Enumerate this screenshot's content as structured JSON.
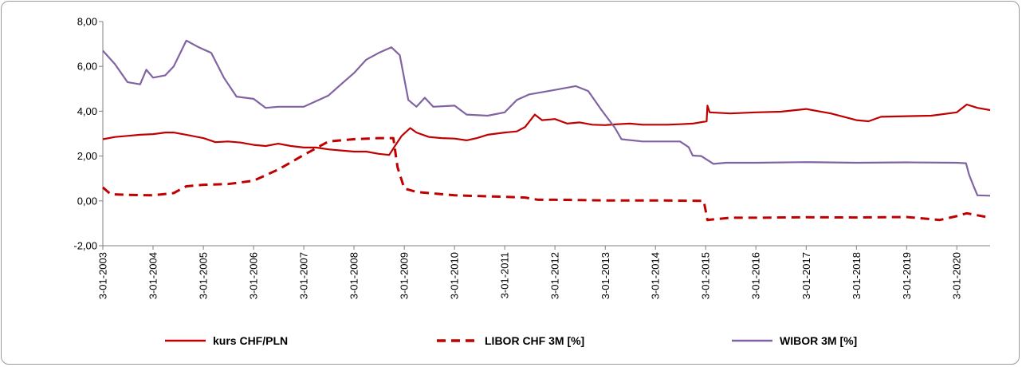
{
  "chart_data": {
    "type": "line",
    "title": "",
    "xlabel": "",
    "ylabel": "",
    "x_start": "2003-01-03",
    "x_end": "2020-09-01",
    "ylim": [
      -2,
      8
    ],
    "y_ticks": [
      "-2,00",
      "0,00",
      "2,00",
      "4,00",
      "6,00",
      "8,00"
    ],
    "x_ticks": [
      "3-01-2003",
      "3-01-2004",
      "3-01-2005",
      "3-01-2006",
      "3-01-2007",
      "3-01-2008",
      "3-01-2009",
      "3-01-2010",
      "3-01-2011",
      "3-01-2012",
      "3-01-2013",
      "3-01-2014",
      "3-01-2015",
      "3-01-2016",
      "3-01-2017",
      "3-01-2018",
      "3-01-2019",
      "3-01-2020"
    ],
    "grid": false,
    "legend_position": "bottom",
    "series": [
      {
        "name": "kurs  CHF/PLN",
        "color": "#c00000",
        "style": "solid",
        "points": [
          [
            "2003-01-03",
            2.75
          ],
          [
            "2003-04-01",
            2.85
          ],
          [
            "2003-07-01",
            2.9
          ],
          [
            "2003-10-01",
            2.95
          ],
          [
            "2004-01-03",
            2.98
          ],
          [
            "2004-04-01",
            3.05
          ],
          [
            "2004-06-01",
            3.05
          ],
          [
            "2004-09-01",
            2.95
          ],
          [
            "2005-01-03",
            2.8
          ],
          [
            "2005-04-01",
            2.62
          ],
          [
            "2005-07-01",
            2.65
          ],
          [
            "2005-10-01",
            2.6
          ],
          [
            "2006-01-03",
            2.5
          ],
          [
            "2006-04-01",
            2.45
          ],
          [
            "2006-07-01",
            2.55
          ],
          [
            "2006-10-01",
            2.45
          ],
          [
            "2007-01-03",
            2.38
          ],
          [
            "2007-04-01",
            2.38
          ],
          [
            "2007-07-01",
            2.3
          ],
          [
            "2007-10-01",
            2.25
          ],
          [
            "2008-01-03",
            2.2
          ],
          [
            "2008-04-01",
            2.2
          ],
          [
            "2008-07-01",
            2.1
          ],
          [
            "2008-09-15",
            2.05
          ],
          [
            "2008-11-01",
            2.5
          ],
          [
            "2008-12-15",
            2.9
          ],
          [
            "2009-02-15",
            3.25
          ],
          [
            "2009-04-01",
            3.05
          ],
          [
            "2009-07-01",
            2.85
          ],
          [
            "2009-10-01",
            2.8
          ],
          [
            "2010-01-03",
            2.78
          ],
          [
            "2010-04-01",
            2.7
          ],
          [
            "2010-06-15",
            2.8
          ],
          [
            "2010-09-01",
            2.95
          ],
          [
            "2011-01-03",
            3.05
          ],
          [
            "2011-04-01",
            3.1
          ],
          [
            "2011-06-01",
            3.3
          ],
          [
            "2011-08-10",
            3.85
          ],
          [
            "2011-10-01",
            3.6
          ],
          [
            "2012-01-03",
            3.65
          ],
          [
            "2012-04-01",
            3.45
          ],
          [
            "2012-07-01",
            3.5
          ],
          [
            "2012-10-01",
            3.4
          ],
          [
            "2013-01-03",
            3.38
          ],
          [
            "2013-04-01",
            3.42
          ],
          [
            "2013-07-01",
            3.45
          ],
          [
            "2013-10-01",
            3.4
          ],
          [
            "2014-01-03",
            3.4
          ],
          [
            "2014-04-01",
            3.4
          ],
          [
            "2014-07-01",
            3.42
          ],
          [
            "2014-10-01",
            3.45
          ],
          [
            "2015-01-10",
            3.55
          ],
          [
            "2015-01-16",
            4.25
          ],
          [
            "2015-02-01",
            3.95
          ],
          [
            "2015-07-01",
            3.9
          ],
          [
            "2016-01-03",
            3.95
          ],
          [
            "2016-07-01",
            3.98
          ],
          [
            "2017-01-03",
            4.1
          ],
          [
            "2017-07-01",
            3.9
          ],
          [
            "2018-01-03",
            3.6
          ],
          [
            "2018-04-01",
            3.55
          ],
          [
            "2018-07-01",
            3.75
          ],
          [
            "2019-01-03",
            3.78
          ],
          [
            "2019-07-01",
            3.8
          ],
          [
            "2020-01-03",
            3.95
          ],
          [
            "2020-03-15",
            4.3
          ],
          [
            "2020-06-01",
            4.15
          ],
          [
            "2020-09-01",
            4.05
          ]
        ]
      },
      {
        "name": "LIBOR CHF 3M [%]",
        "color": "#c00000",
        "style": "dashed",
        "points": [
          [
            "2003-01-03",
            0.6
          ],
          [
            "2003-03-01",
            0.3
          ],
          [
            "2003-07-01",
            0.27
          ],
          [
            "2004-01-03",
            0.25
          ],
          [
            "2004-06-01",
            0.35
          ],
          [
            "2004-09-01",
            0.65
          ],
          [
            "2005-01-03",
            0.72
          ],
          [
            "2005-07-01",
            0.75
          ],
          [
            "2006-01-03",
            0.9
          ],
          [
            "2006-07-01",
            1.4
          ],
          [
            "2007-01-03",
            2.05
          ],
          [
            "2007-07-01",
            2.65
          ],
          [
            "2008-01-03",
            2.75
          ],
          [
            "2008-07-01",
            2.8
          ],
          [
            "2008-10-15",
            2.8
          ],
          [
            "2008-11-15",
            1.5
          ],
          [
            "2009-01-03",
            0.55
          ],
          [
            "2009-04-01",
            0.4
          ],
          [
            "2010-01-03",
            0.25
          ],
          [
            "2011-01-03",
            0.18
          ],
          [
            "2011-06-01",
            0.15
          ],
          [
            "2011-09-01",
            0.05
          ],
          [
            "2012-01-03",
            0.05
          ],
          [
            "2013-01-03",
            0.02
          ],
          [
            "2014-01-03",
            0.02
          ],
          [
            "2014-12-20",
            0.0
          ],
          [
            "2015-01-16",
            -0.85
          ],
          [
            "2015-07-01",
            -0.75
          ],
          [
            "2016-01-03",
            -0.75
          ],
          [
            "2017-01-03",
            -0.73
          ],
          [
            "2018-01-03",
            -0.74
          ],
          [
            "2019-01-03",
            -0.72
          ],
          [
            "2019-09-01",
            -0.85
          ],
          [
            "2020-01-03",
            -0.68
          ],
          [
            "2020-03-15",
            -0.55
          ],
          [
            "2020-09-01",
            -0.75
          ]
        ]
      },
      {
        "name": "WIBOR 3M [%]",
        "color": "#8064a2",
        "style": "solid",
        "points": [
          [
            "2003-01-03",
            6.7
          ],
          [
            "2003-04-01",
            6.1
          ],
          [
            "2003-07-01",
            5.3
          ],
          [
            "2003-10-01",
            5.2
          ],
          [
            "2003-11-15",
            5.85
          ],
          [
            "2004-01-03",
            5.5
          ],
          [
            "2004-04-01",
            5.6
          ],
          [
            "2004-06-01",
            6.0
          ],
          [
            "2004-09-01",
            7.15
          ],
          [
            "2004-12-01",
            6.85
          ],
          [
            "2005-03-01",
            6.6
          ],
          [
            "2005-06-01",
            5.5
          ],
          [
            "2005-09-01",
            4.65
          ],
          [
            "2006-01-03",
            4.55
          ],
          [
            "2006-04-01",
            4.15
          ],
          [
            "2006-07-01",
            4.2
          ],
          [
            "2007-01-03",
            4.2
          ],
          [
            "2007-07-01",
            4.7
          ],
          [
            "2007-10-01",
            5.2
          ],
          [
            "2008-01-03",
            5.7
          ],
          [
            "2008-04-01",
            6.3
          ],
          [
            "2008-07-01",
            6.6
          ],
          [
            "2008-10-01",
            6.85
          ],
          [
            "2008-12-01",
            6.5
          ],
          [
            "2009-02-01",
            4.5
          ],
          [
            "2009-04-01",
            4.2
          ],
          [
            "2009-06-01",
            4.6
          ],
          [
            "2009-08-01",
            4.2
          ],
          [
            "2010-01-03",
            4.25
          ],
          [
            "2010-04-01",
            3.85
          ],
          [
            "2010-09-01",
            3.8
          ],
          [
            "2011-01-03",
            3.95
          ],
          [
            "2011-04-01",
            4.5
          ],
          [
            "2011-07-01",
            4.75
          ],
          [
            "2012-01-03",
            4.95
          ],
          [
            "2012-06-01",
            5.12
          ],
          [
            "2012-09-01",
            4.9
          ],
          [
            "2012-12-01",
            4.1
          ],
          [
            "2013-03-15",
            3.25
          ],
          [
            "2013-05-01",
            2.75
          ],
          [
            "2013-10-01",
            2.65
          ],
          [
            "2014-07-01",
            2.65
          ],
          [
            "2014-09-01",
            2.4
          ],
          [
            "2014-10-01",
            2.02
          ],
          [
            "2014-12-01",
            2.0
          ],
          [
            "2015-03-01",
            1.65
          ],
          [
            "2015-06-01",
            1.7
          ],
          [
            "2016-01-03",
            1.7
          ],
          [
            "2017-01-03",
            1.73
          ],
          [
            "2018-01-03",
            1.7
          ],
          [
            "2019-01-03",
            1.72
          ],
          [
            "2020-01-03",
            1.7
          ],
          [
            "2020-03-10",
            1.68
          ],
          [
            "2020-04-01",
            1.17
          ],
          [
            "2020-05-01",
            0.7
          ],
          [
            "2020-06-01",
            0.25
          ],
          [
            "2020-09-01",
            0.23
          ]
        ]
      }
    ]
  }
}
